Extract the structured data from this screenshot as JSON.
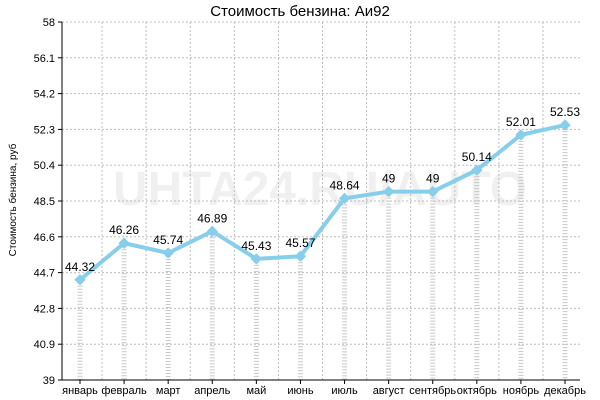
{
  "chart_data": {
    "type": "line",
    "title": "Стоимость бензина: Аи92",
    "ylabel": "Стоимость бензина, руб",
    "xlabel": "",
    "categories": [
      "январь",
      "февраль",
      "март",
      "апрель",
      "май",
      "июнь",
      "июль",
      "август",
      "сентябрь",
      "октябрь",
      "ноябрь",
      "декабрь"
    ],
    "values": [
      44.32,
      46.26,
      45.74,
      46.89,
      45.43,
      45.57,
      48.64,
      49,
      49,
      50.14,
      52.01,
      52.53
    ],
    "value_labels": [
      "44.32",
      "46.26",
      "45.74",
      "46.89",
      "45.43",
      "45.57",
      "48.64",
      "49",
      "49",
      "50.14",
      "52.01",
      "52.53"
    ],
    "ylim": [
      39,
      58
    ],
    "yticks": [
      39,
      40.9,
      42.8,
      44.7,
      46.6,
      48.5,
      50.4,
      52.3,
      54.2,
      56.1,
      58
    ],
    "ytick_labels": [
      "39",
      "40.9",
      "42.8",
      "44.7",
      "46.6",
      "48.5",
      "50.4",
      "52.3",
      "54.2",
      "56.1",
      "58"
    ],
    "grid": true,
    "legend": "none",
    "line_color": "#87ceeb"
  },
  "watermark": "UHTA24.RU/AUTO"
}
